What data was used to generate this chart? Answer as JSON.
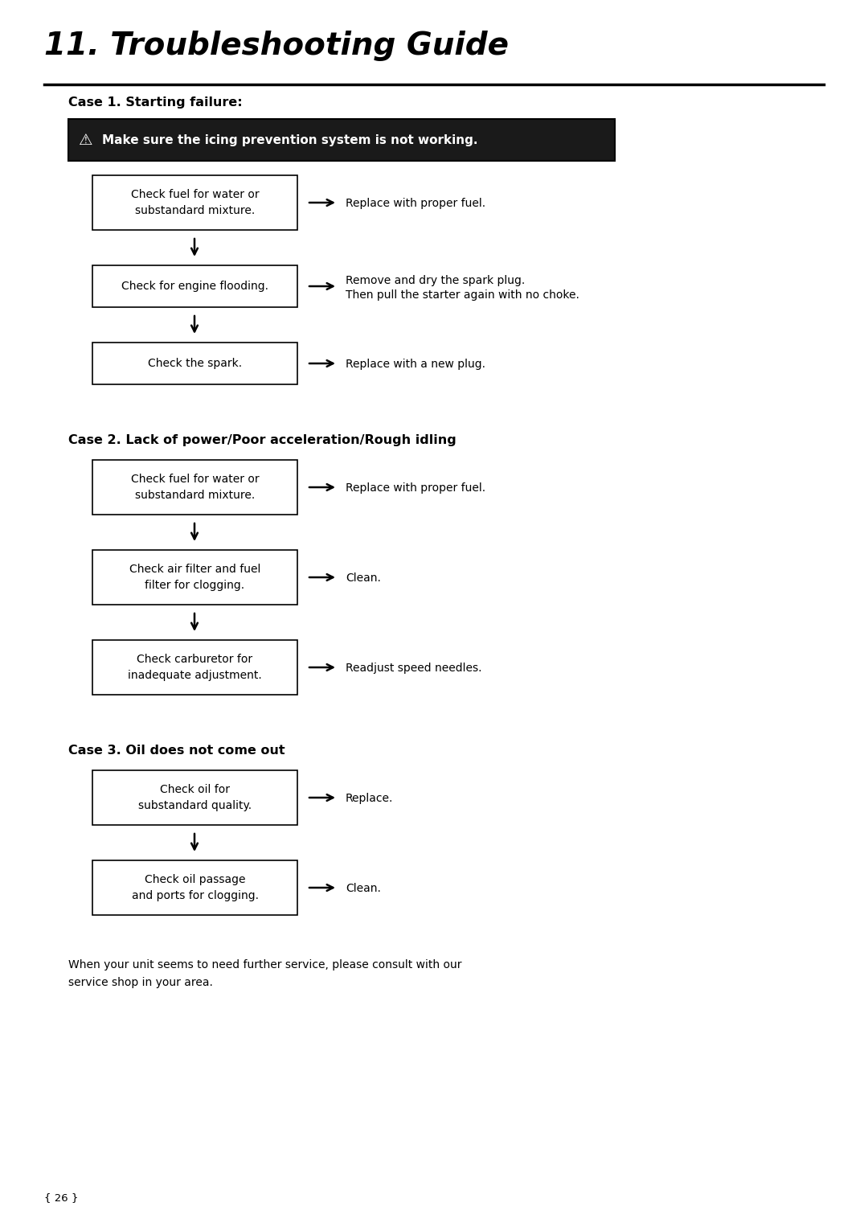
{
  "title": "11. Troubleshooting Guide",
  "bg_color": "#ffffff",
  "text_color": "#000000",
  "page_number": "{ 26 }",
  "case1_heading": "Case 1. Starting failure:",
  "case2_heading": "Case 2. Lack of power/Poor acceleration/Rough idling",
  "case3_heading": "Case 3. Oil does not come out",
  "warning_text": "Make sure the icing prevention system is not working.",
  "case1_boxes": [
    "Check fuel for water or\nsubstandard mixture.",
    "Check for engine flooding.",
    "Check the spark."
  ],
  "case1_arrows": [
    "Replace with proper fuel.",
    "Remove and dry the spark plug.\nThen pull the starter again with no choke.",
    "Replace with a new plug."
  ],
  "case2_boxes": [
    "Check fuel for water or\nsubstandard mixture.",
    "Check air filter and fuel\nfilter for clogging.",
    "Check carburetor for\ninadequate adjustment."
  ],
  "case2_arrows": [
    "Replace with proper fuel.",
    "Clean.",
    "Readjust speed needles."
  ],
  "case3_boxes": [
    "Check oil for\nsubstandard quality.",
    "Check oil passage\nand ports for clogging."
  ],
  "case3_arrows": [
    "Replace.",
    "Clean."
  ],
  "footer_text": "When your unit seems to need further service, please consult with our\nservice shop in your area."
}
